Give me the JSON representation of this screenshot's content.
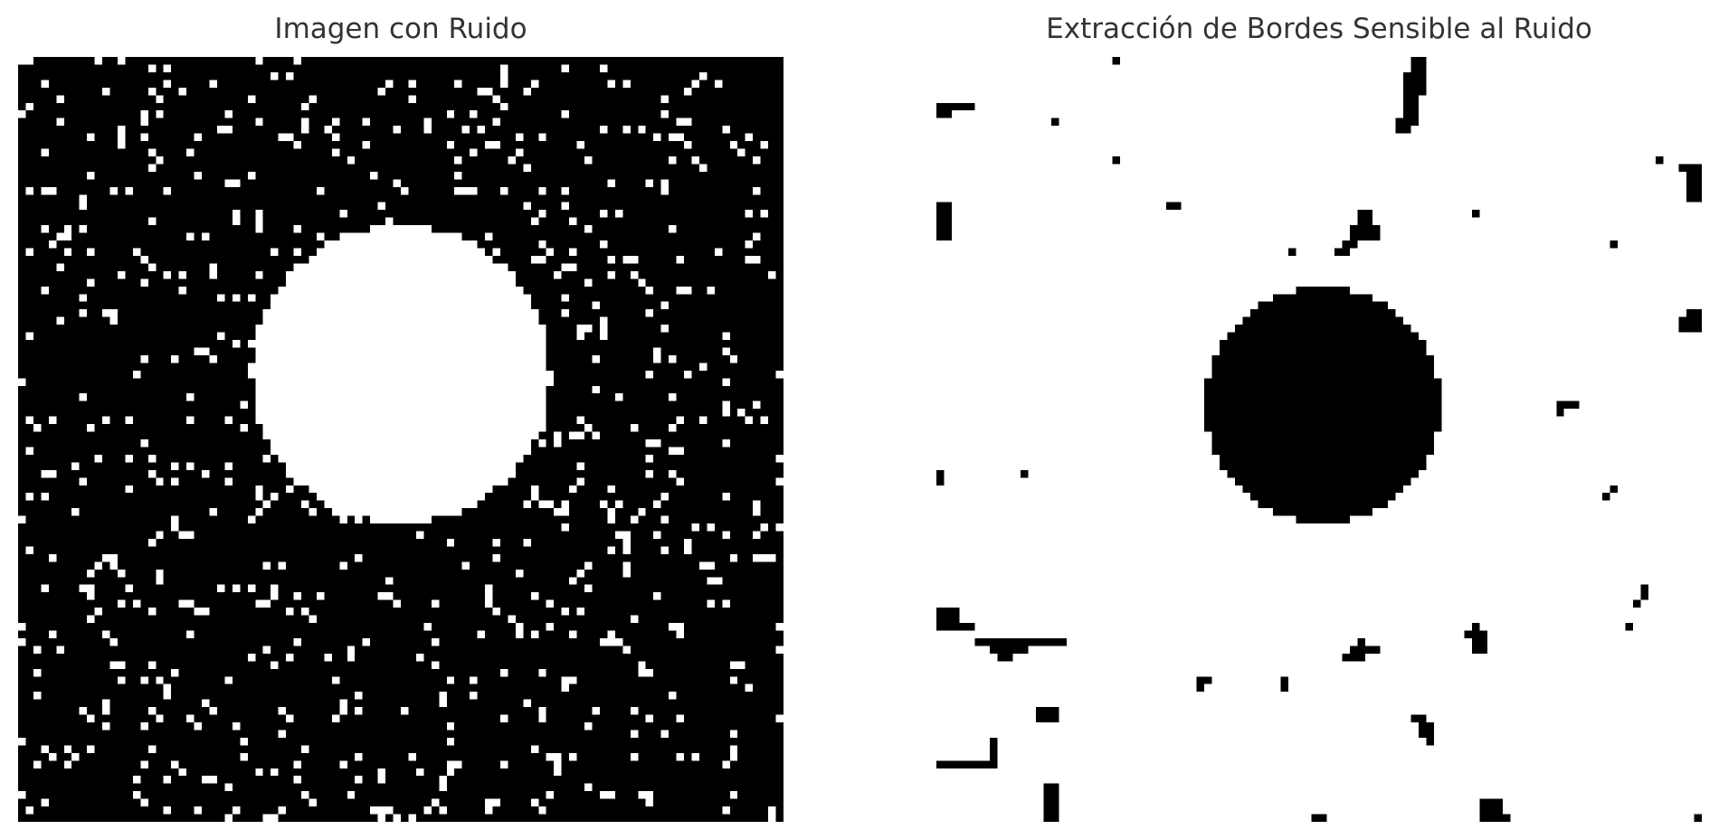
{
  "panels": [
    {
      "title": "Imagen con Ruido",
      "content": "binary image: white filled circle on black background with sparse white salt noise"
    },
    {
      "title": "Extracción de Bordes Sensible al Ruido",
      "content": "binary image: black filled circle on white background with scattered black noise blobs"
    }
  ],
  "colors": {
    "foreground": "#000000",
    "background": "#ffffff",
    "title": "#333333"
  }
}
